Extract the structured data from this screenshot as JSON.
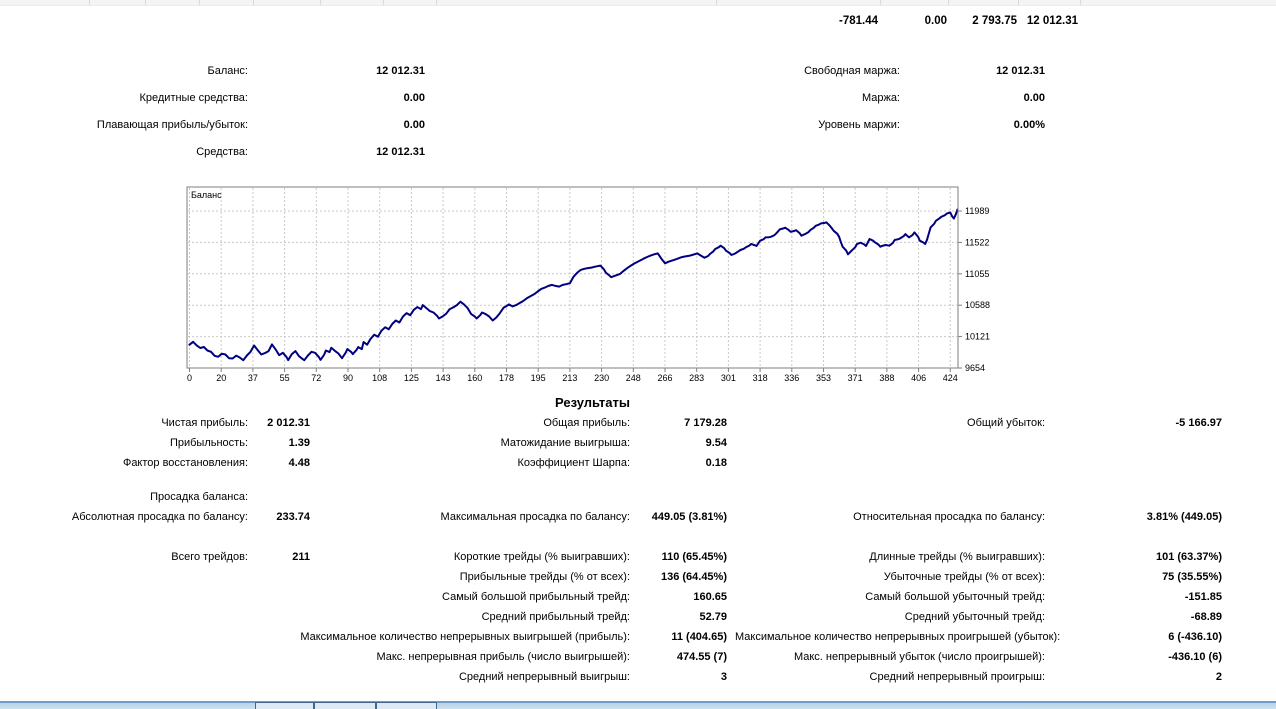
{
  "top_table": {
    "values": [
      "-781.44",
      "0.00",
      "2 793.75",
      "12 012.31"
    ]
  },
  "account": {
    "rows": [
      {
        "al": "Баланс:",
        "av": "12 012.31",
        "bl": "Свободная маржа:",
        "bv": "12 012.31"
      },
      {
        "al": "Кредитные средства:",
        "av": "0.00",
        "bl": "Маржа:",
        "bv": "0.00"
      },
      {
        "al": "Плавающая прибыль/убыток:",
        "av": "0.00",
        "bl": "Уровень маржи:",
        "bv": "0.00%"
      },
      {
        "al": "Средства:",
        "av": "12 012.31"
      }
    ]
  },
  "chart_data": {
    "type": "line",
    "title": "Баланс",
    "grid": "dashed",
    "x_ticks": [
      0,
      20,
      37,
      55,
      72,
      90,
      108,
      125,
      143,
      160,
      178,
      195,
      213,
      230,
      248,
      266,
      283,
      301,
      318,
      336,
      353,
      371,
      388,
      406,
      424
    ],
    "y_ticks": [
      11989,
      11522,
      11055,
      10588,
      10121,
      9654
    ],
    "x_range": [
      0,
      428
    ],
    "y_range": [
      9595,
      12345
    ],
    "series": [
      {
        "name": "Баланс",
        "color": "#000080",
        "points": [
          [
            0,
            10000
          ],
          [
            2,
            10043
          ],
          [
            4,
            9990
          ],
          [
            6,
            9952
          ],
          [
            8,
            9967
          ],
          [
            10,
            9915
          ],
          [
            12,
            9895
          ],
          [
            14,
            9835
          ],
          [
            16,
            9820
          ],
          [
            18,
            9866
          ],
          [
            20,
            9855
          ],
          [
            22,
            9800
          ],
          [
            24,
            9795
          ],
          [
            26,
            9838
          ],
          [
            28,
            9810
          ],
          [
            30,
            9770
          ],
          [
            32,
            9840
          ],
          [
            34,
            9895
          ],
          [
            36,
            9988
          ],
          [
            38,
            9920
          ],
          [
            40,
            9855
          ],
          [
            42,
            9875
          ],
          [
            44,
            9905
          ],
          [
            46,
            10005
          ],
          [
            48,
            9930
          ],
          [
            50,
            9845
          ],
          [
            52,
            9880
          ],
          [
            54,
            9820
          ],
          [
            55,
            9772
          ],
          [
            57,
            9860
          ],
          [
            59,
            9905
          ],
          [
            61,
            9830
          ],
          [
            63,
            9790
          ],
          [
            64,
            9770
          ],
          [
            66,
            9840
          ],
          [
            68,
            9895
          ],
          [
            70,
            9880
          ],
          [
            72,
            9820
          ],
          [
            73,
            9775
          ],
          [
            75,
            9850
          ],
          [
            76,
            9915
          ],
          [
            78,
            9890
          ],
          [
            79,
            9955
          ],
          [
            81,
            9910
          ],
          [
            83,
            9870
          ],
          [
            85,
            9800
          ],
          [
            87,
            9880
          ],
          [
            88,
            9935
          ],
          [
            90,
            9895
          ],
          [
            91,
            9860
          ],
          [
            93,
            9920
          ],
          [
            94,
            9965
          ],
          [
            96,
            9935
          ],
          [
            97,
            10040
          ],
          [
            99,
            10000
          ],
          [
            101,
            10090
          ],
          [
            103,
            10150
          ],
          [
            105,
            10120
          ],
          [
            107,
            10210
          ],
          [
            109,
            10260
          ],
          [
            111,
            10230
          ],
          [
            113,
            10310
          ],
          [
            115,
            10360
          ],
          [
            117,
            10330
          ],
          [
            119,
            10420
          ],
          [
            121,
            10470
          ],
          [
            123,
            10440
          ],
          [
            125,
            10520
          ],
          [
            127,
            10560
          ],
          [
            129,
            10530
          ],
          [
            130,
            10590
          ],
          [
            132,
            10545
          ],
          [
            134,
            10500
          ],
          [
            136,
            10480
          ],
          [
            138,
            10430
          ],
          [
            139,
            10390
          ],
          [
            141,
            10420
          ],
          [
            143,
            10460
          ],
          [
            145,
            10530
          ],
          [
            147,
            10555
          ],
          [
            149,
            10590
          ],
          [
            151,
            10640
          ],
          [
            153,
            10600
          ],
          [
            155,
            10545
          ],
          [
            157,
            10455
          ],
          [
            159,
            10420
          ],
          [
            160,
            10390
          ],
          [
            162,
            10440
          ],
          [
            163,
            10480
          ],
          [
            165,
            10455
          ],
          [
            167,
            10420
          ],
          [
            169,
            10360
          ],
          [
            171,
            10405
          ],
          [
            173,
            10470
          ],
          [
            175,
            10550
          ],
          [
            177,
            10580
          ],
          [
            178,
            10600
          ],
          [
            180,
            10570
          ],
          [
            182,
            10590
          ],
          [
            184,
            10620
          ],
          [
            186,
            10650
          ],
          [
            188,
            10690
          ],
          [
            190,
            10720
          ],
          [
            192,
            10750
          ],
          [
            194,
            10790
          ],
          [
            196,
            10830
          ],
          [
            198,
            10850
          ],
          [
            200,
            10875
          ],
          [
            202,
            10890
          ],
          [
            204,
            10875
          ],
          [
            206,
            10865
          ],
          [
            208,
            10890
          ],
          [
            210,
            10900
          ],
          [
            212,
            10915
          ],
          [
            214,
            11010
          ],
          [
            216,
            11070
          ],
          [
            218,
            11113
          ],
          [
            220,
            11130
          ],
          [
            222,
            11140
          ],
          [
            224,
            11147
          ],
          [
            226,
            11160
          ],
          [
            229,
            11177
          ],
          [
            231,
            11120
          ],
          [
            232,
            11073
          ],
          [
            234,
            11030
          ],
          [
            235,
            11004
          ],
          [
            237,
            11025
          ],
          [
            240,
            11053
          ],
          [
            242,
            11100
          ],
          [
            244,
            11140
          ],
          [
            246,
            11177
          ],
          [
            248,
            11210
          ],
          [
            251,
            11251
          ],
          [
            253,
            11280
          ],
          [
            255,
            11305
          ],
          [
            257,
            11325
          ],
          [
            259,
            11345
          ],
          [
            261,
            11359
          ],
          [
            263,
            11280
          ],
          [
            265,
            11211
          ],
          [
            267,
            11235
          ],
          [
            270,
            11261
          ],
          [
            272,
            11280
          ],
          [
            274,
            11300
          ],
          [
            276,
            11312
          ],
          [
            279,
            11325
          ],
          [
            281,
            11342
          ],
          [
            283,
            11359
          ],
          [
            285,
            11325
          ],
          [
            287,
            11295
          ],
          [
            289,
            11320
          ],
          [
            290,
            11349
          ],
          [
            292,
            11390
          ],
          [
            293,
            11424
          ],
          [
            295,
            11450
          ],
          [
            296,
            11473
          ],
          [
            298,
            11435
          ],
          [
            299,
            11399
          ],
          [
            301,
            11365
          ],
          [
            302,
            11334
          ],
          [
            304,
            11355
          ],
          [
            305,
            11374
          ],
          [
            307,
            11409
          ],
          [
            309,
            11428
          ],
          [
            310,
            11448
          ],
          [
            312,
            11475
          ],
          [
            313,
            11498
          ],
          [
            315,
            11480
          ],
          [
            316,
            11468
          ],
          [
            318,
            11547
          ],
          [
            320,
            11570
          ],
          [
            321,
            11596
          ],
          [
            323,
            11600
          ],
          [
            324,
            11606
          ],
          [
            326,
            11630
          ],
          [
            327,
            11656
          ],
          [
            329,
            11715
          ],
          [
            331,
            11730
          ],
          [
            332,
            11740
          ],
          [
            334,
            11705
          ],
          [
            335,
            11680
          ],
          [
            337,
            11692
          ],
          [
            338,
            11705
          ],
          [
            340,
            11660
          ],
          [
            341,
            11621
          ],
          [
            343,
            11646
          ],
          [
            345,
            11675
          ],
          [
            346,
            11705
          ],
          [
            348,
            11740
          ],
          [
            349,
            11769
          ],
          [
            351,
            11790
          ],
          [
            352,
            11804
          ],
          [
            354,
            11812
          ],
          [
            355,
            11819
          ],
          [
            356,
            11792
          ],
          [
            357,
            11765
          ],
          [
            358,
            11730
          ],
          [
            359,
            11695
          ],
          [
            361,
            11650
          ],
          [
            362,
            11606
          ],
          [
            363,
            11530
          ],
          [
            364,
            11458
          ],
          [
            366,
            11400
          ],
          [
            367,
            11345
          ],
          [
            368,
            11372
          ],
          [
            369,
            11399
          ],
          [
            371,
            11450
          ],
          [
            372,
            11498
          ],
          [
            373,
            11508
          ],
          [
            374,
            11517
          ],
          [
            376,
            11492
          ],
          [
            377,
            11468
          ],
          [
            378,
            11520
          ],
          [
            379,
            11572
          ],
          [
            381,
            11548
          ],
          [
            382,
            11523
          ],
          [
            384,
            11490
          ],
          [
            385,
            11458
          ],
          [
            386,
            11470
          ],
          [
            388,
            11483
          ],
          [
            390,
            11473
          ],
          [
            392,
            11515
          ],
          [
            393,
            11557
          ],
          [
            395,
            11570
          ],
          [
            396,
            11582
          ],
          [
            398,
            11614
          ],
          [
            399,
            11646
          ],
          [
            400,
            11620
          ],
          [
            401,
            11596
          ],
          [
            403,
            11633
          ],
          [
            404,
            11670
          ],
          [
            405,
            11640
          ],
          [
            406,
            11608
          ],
          [
            407,
            11547
          ],
          [
            409,
            11520
          ],
          [
            410,
            11498
          ],
          [
            411,
            11560
          ],
          [
            413,
            11745
          ],
          [
            415,
            11800
          ],
          [
            416,
            11843
          ],
          [
            418,
            11880
          ],
          [
            419,
            11902
          ],
          [
            420,
            11915
          ],
          [
            421,
            11927
          ],
          [
            422,
            11950
          ],
          [
            424,
            11966
          ],
          [
            425,
            11910
          ],
          [
            426,
            11877
          ],
          [
            427,
            11935
          ],
          [
            428,
            12012
          ]
        ]
      }
    ]
  },
  "results": {
    "title": "Результаты",
    "profit_rows": [
      {
        "c1l": "Чистая прибыль:",
        "c1v": "2 012.31",
        "c2l": "Общая прибыль:",
        "c2v": "7 179.28",
        "c3l": "Общий убыток:",
        "c3v": "-5 166.97"
      },
      {
        "c1l": "Прибыльность:",
        "c1v": "1.39",
        "c2l": "Матожидание выигрыша:",
        "c2v": "9.54"
      },
      {
        "c1l": "Фактор восстановления:",
        "c1v": "4.48",
        "c2l": "Коэффициент Шарпа:",
        "c2v": "0.18"
      }
    ],
    "drawdown_rows": [
      {
        "c1l": "Просадка баланса:"
      },
      {
        "c1l": "Абсолютная просадка по балансу:",
        "c1v": "233.74",
        "c2l": "Максимальная просадка по балансу:",
        "c2v": "449.05 (3.81%)",
        "c3l": "Относительная просадка по балансу:",
        "c3v": "3.81% (449.05)"
      }
    ],
    "trade_rows": [
      {
        "c1l": "Всего трейдов:",
        "c1v": "211",
        "c2l": "Короткие трейды (% выигравших):",
        "c2v": "110 (65.45%)",
        "c3l": "Длинные трейды (% выигравших):",
        "c3v": "101 (63.37%)"
      },
      {
        "c2l": "Прибыльные трейды (% от всех):",
        "c2v": "136 (64.45%)",
        "c3l": "Убыточные трейды (% от всех):",
        "c3v": "75 (35.55%)"
      },
      {
        "c2l": "Самый большой прибыльный трейд:",
        "c2v": "160.65",
        "c3l": "Самый большой убыточный трейд:",
        "c3v": "-151.85"
      },
      {
        "c2l": "Средний прибыльный трейд:",
        "c2v": "52.79",
        "c3l": "Средний убыточный трейд:",
        "c3v": "-68.89"
      },
      {
        "c2l": "Максимальное количество непрерывных выигрышей (прибыль):",
        "c2v": "11 (404.65)",
        "c3l": "Максимальное количество непрерывных проигрышей (убыток):",
        "c3v": "6 (-436.10)"
      },
      {
        "c2l": "Макс. непрерывная прибыль (число выигрышей):",
        "c2v": "474.55 (7)",
        "c3l": "Макс. непрерывный убыток (число проигрышей):",
        "c3v": "-436.10 (6)"
      },
      {
        "c2l": "Средний непрерывный выигрыш:",
        "c2v": "3",
        "c3l": "Средний непрерывный проигрыш:",
        "c3v": "2"
      }
    ]
  }
}
